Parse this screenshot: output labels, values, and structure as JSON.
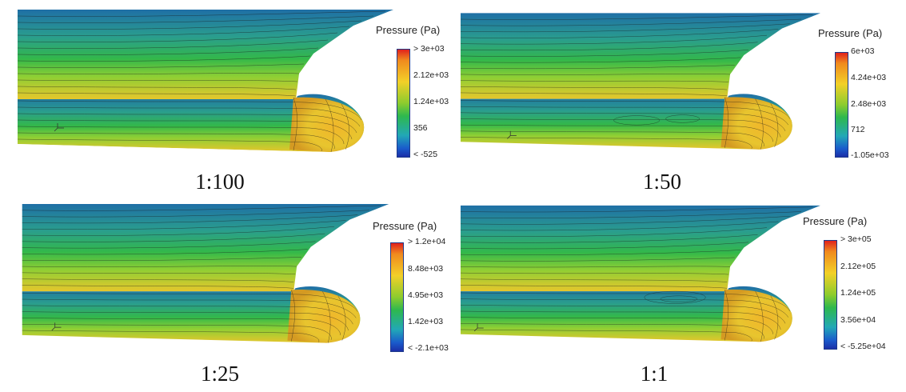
{
  "panels": [
    {
      "caption": "1:100",
      "legend": {
        "title": "Pressure (Pa)",
        "ticks": [
          "> 3e+03",
          "2.12e+03",
          "1.24e+03",
          "356",
          "< -525"
        ]
      }
    },
    {
      "caption": "1:50",
      "legend": {
        "title": "Pressure (Pa)",
        "ticks": [
          "6e+03",
          "4.24e+03",
          "2.48e+03",
          "712",
          "-1.05e+03"
        ]
      }
    },
    {
      "caption": "1:25",
      "legend": {
        "title": "Pressure (Pa)",
        "ticks": [
          "> 1.2e+04",
          "8.48e+03",
          "4.95e+03",
          "1.42e+03",
          "< -2.1e+03"
        ]
      }
    },
    {
      "caption": "1:1",
      "legend": {
        "title": "Pressure (Pa)",
        "ticks": [
          "> 3e+05",
          "2.12e+05",
          "1.24e+05",
          "3.56e+04",
          "< -5.25e+04"
        ]
      }
    }
  ],
  "colors": {
    "high": "#e0211d",
    "mid_high": "#f2d028",
    "mid": "#2eb84e",
    "low": "#1b2fa8"
  }
}
